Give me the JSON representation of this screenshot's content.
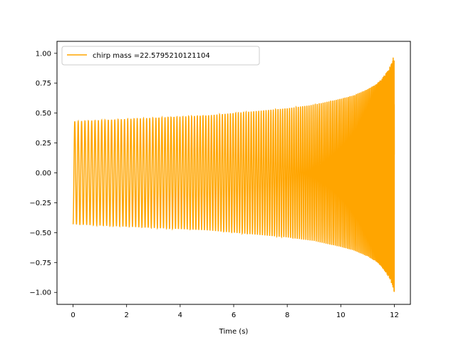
{
  "chart_data": {
    "type": "line",
    "title": "",
    "xlabel": "Time (s)",
    "ylabel": "",
    "xlim": [
      -0.6,
      12.6
    ],
    "ylim": [
      -1.1,
      1.1
    ],
    "xticks": [
      0,
      2,
      4,
      6,
      8,
      10,
      12
    ],
    "xtick_labels": [
      "0",
      "2",
      "4",
      "6",
      "8",
      "10",
      "12"
    ],
    "yticks": [
      -1.0,
      -0.75,
      -0.5,
      -0.25,
      0.0,
      0.25,
      0.5,
      0.75,
      1.0
    ],
    "ytick_labels": [
      "−1.00",
      "−0.75",
      "−0.50",
      "−0.25",
      "0.00",
      "0.25",
      "0.50",
      "0.75",
      "1.00"
    ],
    "grid": false,
    "legend_position": "upper-left",
    "series": [
      {
        "name": "chirp mass =22.5795210121104",
        "color": "#ffa500",
        "envelope": {
          "t": [
            0,
            1,
            2,
            3,
            4,
            5,
            6,
            7,
            8,
            9,
            10,
            10.5,
            11,
            11.3,
            11.5,
            11.7,
            11.85,
            11.95,
            12.0
          ],
          "amplitude": [
            0.43,
            0.44,
            0.45,
            0.46,
            0.47,
            0.48,
            0.5,
            0.52,
            0.54,
            0.57,
            0.62,
            0.65,
            0.7,
            0.74,
            0.78,
            0.84,
            0.9,
            0.96,
            1.0
          ]
        },
        "cycles": 150
      }
    ]
  }
}
